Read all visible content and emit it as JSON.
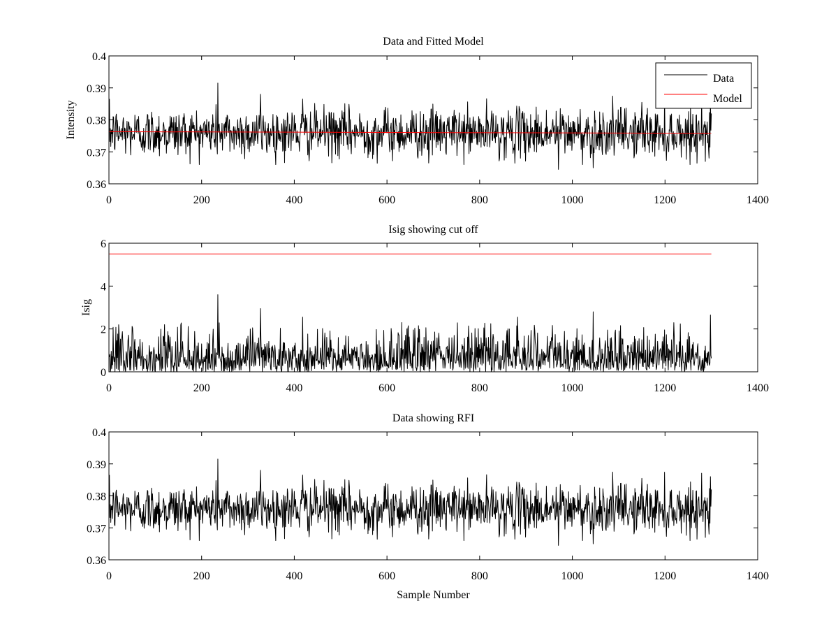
{
  "chart_data": [
    {
      "type": "line",
      "title": "Data and Fitted Model",
      "xlabel": "",
      "ylabel": "Intensity",
      "xlim": [
        0,
        1400
      ],
      "ylim": [
        0.36,
        0.4
      ],
      "xticks": [
        0,
        200,
        400,
        600,
        800,
        1000,
        1200,
        1400
      ],
      "yticks": [
        0.36,
        0.37,
        0.38,
        0.39,
        0.4
      ],
      "grid": false,
      "legend": {
        "placement": "top-right",
        "entries": [
          "Data",
          "Model"
        ]
      },
      "series": [
        {
          "name": "Data",
          "color": "#000000",
          "x_range": [
            1,
            1300
          ],
          "n_points": 1300,
          "mean": 0.376,
          "min": 0.3645,
          "max": 0.3915,
          "notable_peaks": [
            {
              "x": 235,
              "y": 0.3915
            },
            {
              "x": 327,
              "y": 0.388
            },
            {
              "x": 418,
              "y": 0.3865
            },
            {
              "x": 1150,
              "y": 0.3855
            },
            {
              "x": 1298,
              "y": 0.386
            },
            {
              "x": 970,
              "y": 0.3645
            },
            {
              "x": 1045,
              "y": 0.365
            },
            {
              "x": 690,
              "y": 0.3665
            }
          ]
        },
        {
          "name": "Model",
          "color": "#ff0000",
          "x": [
            1,
            1300
          ],
          "y": [
            0.3763,
            0.3758
          ]
        }
      ]
    },
    {
      "type": "line",
      "title": "Isig showing cut off",
      "xlabel": "",
      "ylabel": "Isig",
      "xlim": [
        0,
        1400
      ],
      "ylim": [
        0,
        6
      ],
      "xticks": [
        0,
        200,
        400,
        600,
        800,
        1000,
        1200,
        1400
      ],
      "yticks": [
        0,
        2,
        4,
        6
      ],
      "grid": false,
      "series": [
        {
          "color": "#000000",
          "x_range": [
            1,
            1300
          ],
          "n_points": 1300,
          "mean": 0.8,
          "min": 0.0,
          "max": 3.6,
          "notable_peaks": [
            {
              "x": 235,
              "y": 3.6
            },
            {
              "x": 327,
              "y": 2.95
            },
            {
              "x": 418,
              "y": 2.55
            },
            {
              "x": 882,
              "y": 2.55
            },
            {
              "x": 1045,
              "y": 2.8
            },
            {
              "x": 1298,
              "y": 2.65
            }
          ]
        },
        {
          "color": "#ff0000",
          "x": [
            1,
            1300
          ],
          "y": [
            5.5,
            5.5
          ]
        }
      ]
    },
    {
      "type": "line",
      "title": "Data showing RFI",
      "xlabel": "Sample Number",
      "ylabel": "",
      "xlim": [
        0,
        1400
      ],
      "ylim": [
        0.36,
        0.4
      ],
      "xticks": [
        0,
        200,
        400,
        600,
        800,
        1000,
        1200,
        1400
      ],
      "yticks": [
        0.36,
        0.37,
        0.38,
        0.39,
        0.4
      ],
      "grid": false,
      "series": [
        {
          "color": "#000000",
          "x_range": [
            1,
            1300
          ],
          "n_points": 1300,
          "mean": 0.376,
          "min": 0.3645,
          "max": 0.3915,
          "notable_peaks": [
            {
              "x": 235,
              "y": 0.3915
            },
            {
              "x": 327,
              "y": 0.388
            },
            {
              "x": 418,
              "y": 0.3865
            },
            {
              "x": 1150,
              "y": 0.3855
            },
            {
              "x": 1298,
              "y": 0.386
            },
            {
              "x": 970,
              "y": 0.3645
            },
            {
              "x": 1045,
              "y": 0.365
            },
            {
              "x": 690,
              "y": 0.3665
            }
          ]
        }
      ]
    }
  ]
}
